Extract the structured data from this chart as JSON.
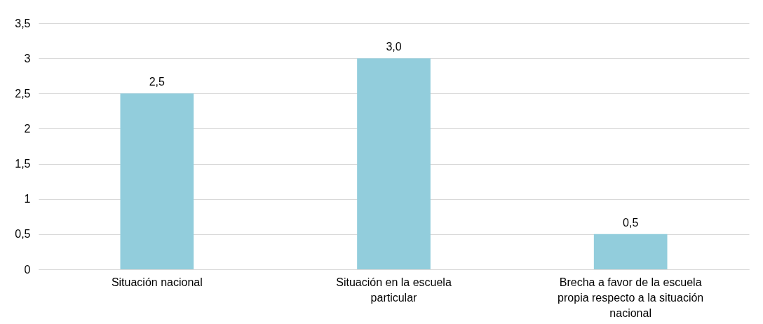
{
  "chart_data": {
    "type": "bar",
    "categories": [
      "Situación nacional",
      "Situación en la escuela particular",
      "Brecha a favor de la escuela propia respecto a la situación nacional"
    ],
    "values": [
      2.5,
      3.0,
      0.5
    ],
    "value_labels": [
      "2,5",
      "3,0",
      "0,5"
    ],
    "color": "#92cddc",
    "ylim": [
      0,
      3.5
    ],
    "yticks": [
      0,
      {
        "value": 0.5,
        "label": "0,5"
      },
      1,
      {
        "value": 1.5,
        "label": "1,5"
      },
      2,
      {
        "value": 2.5,
        "label": "2,5"
      },
      3,
      {
        "value": 3.5,
        "label": "3,5"
      }
    ],
    "grid": "y"
  }
}
